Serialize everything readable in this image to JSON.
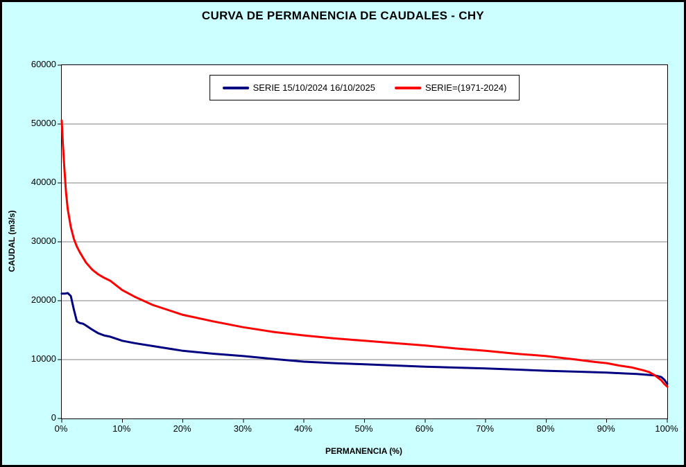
{
  "title": "CURVA DE PERMANENCIA DE CAUDALES - CHY",
  "colors": {
    "background": "#CCFFFF",
    "plot_background": "#FFFFFF",
    "grid": "#808080",
    "axis": "#000000",
    "series_blue": "#000080",
    "series_red": "#FF0000"
  },
  "chart_data": {
    "type": "line",
    "title": "CURVA DE PERMANENCIA DE CAUDALES - CHY",
    "xlabel": "PERMANENCIA (%)",
    "ylabel": "CAUDAL (m3/s)",
    "xlim": [
      0,
      100
    ],
    "ylim": [
      0,
      60000
    ],
    "ytick_step": 10000,
    "grid": "horizontal",
    "legend_position": "top-center",
    "xtick_labels": [
      "0%",
      "10%",
      "20%",
      "30%",
      "40%",
      "50%",
      "60%",
      "70%",
      "80%",
      "90%",
      "100%"
    ],
    "ytick_labels_top_to_bottom": [
      "60000",
      "50000",
      "40000",
      "30000",
      "20000",
      "10000",
      "0"
    ],
    "series": [
      {
        "name": "SERIE 15/10/2024 16/10/2025",
        "color": "#000080",
        "x": [
          0,
          0.5,
          1,
          1.5,
          2,
          2.5,
          3,
          3.5,
          4,
          5,
          6,
          7,
          8,
          10,
          12,
          15,
          20,
          25,
          30,
          35,
          40,
          45,
          50,
          55,
          60,
          65,
          70,
          75,
          80,
          85,
          90,
          93,
          95,
          97,
          98,
          99,
          99.5,
          100
        ],
        "y": [
          21200,
          21200,
          21300,
          20800,
          18500,
          16500,
          16200,
          16100,
          15800,
          15100,
          14500,
          14100,
          13900,
          13200,
          12800,
          12300,
          11500,
          11000,
          10600,
          10100,
          9650,
          9400,
          9200,
          9000,
          8800,
          8650,
          8500,
          8300,
          8100,
          7950,
          7800,
          7650,
          7550,
          7400,
          7300,
          7050,
          6600,
          5900
        ]
      },
      {
        "name": "SERIE=(1971-2024)",
        "color": "#FF0000",
        "x": [
          0,
          0.2,
          0.4,
          0.7,
          1,
          1.5,
          2,
          2.5,
          3,
          4,
          5,
          6,
          7,
          8,
          10,
          12,
          15,
          20,
          25,
          30,
          35,
          40,
          45,
          50,
          55,
          60,
          65,
          70,
          75,
          80,
          85,
          88,
          90,
          92,
          94,
          96,
          97,
          98,
          99,
          99.5,
          100
        ],
        "y": [
          50600,
          46500,
          43000,
          38500,
          35500,
          32500,
          30500,
          29200,
          28200,
          26500,
          25300,
          24500,
          23900,
          23400,
          21800,
          20700,
          19300,
          17600,
          16500,
          15500,
          14700,
          14100,
          13600,
          13200,
          12800,
          12400,
          11900,
          11500,
          11000,
          10600,
          10000,
          9600,
          9400,
          9000,
          8700,
          8200,
          7900,
          7300,
          6500,
          5900,
          5400
        ]
      }
    ]
  }
}
